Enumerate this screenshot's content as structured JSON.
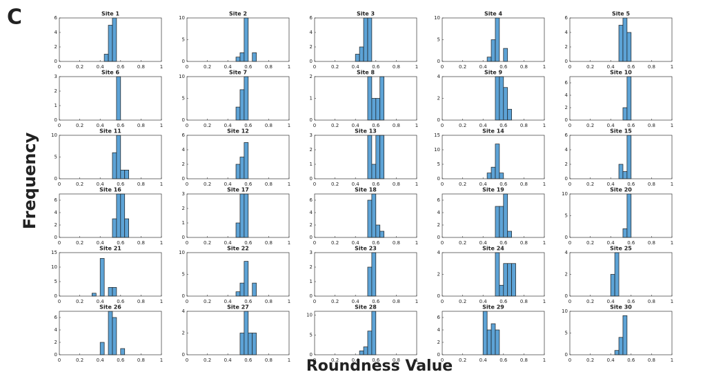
{
  "panel_label": "C",
  "ylabel": "Frequency",
  "xlabel": "Roundness Value",
  "chart_data": [
    {
      "type": "histogram",
      "title": "Site 1",
      "bins": [
        0.44,
        0.48,
        0.52,
        0.56
      ],
      "values": [
        1,
        5,
        6
      ],
      "color": "#5da3d6",
      "xlim": [
        0,
        1
      ],
      "xticks": [
        0,
        0.2,
        0.4,
        0.6,
        0.8,
        1
      ],
      "ylim": [
        0,
        6
      ],
      "yticks": [
        0,
        2,
        4,
        6
      ]
    },
    {
      "type": "histogram",
      "title": "Site 2",
      "bins": [
        0.48,
        0.52,
        0.56,
        0.6,
        0.64,
        0.68
      ],
      "values": [
        1,
        2,
        10,
        0,
        2
      ],
      "color": "#5da3d6",
      "xlim": [
        0,
        1
      ],
      "xticks": [
        0,
        0.2,
        0.4,
        0.6,
        0.8,
        1
      ],
      "ylim": [
        0,
        10
      ],
      "yticks": [
        0,
        5,
        10
      ]
    },
    {
      "type": "histogram",
      "title": "Site 3",
      "bins": [
        0.4,
        0.44,
        0.48,
        0.52,
        0.56
      ],
      "values": [
        1,
        2,
        6,
        6
      ],
      "color": "#5da3d6",
      "xlim": [
        0,
        1
      ],
      "xticks": [
        0,
        0.2,
        0.4,
        0.6,
        0.8,
        1
      ],
      "ylim": [
        0,
        6
      ],
      "yticks": [
        0,
        2,
        4,
        6
      ]
    },
    {
      "type": "histogram",
      "title": "Site 4",
      "bins": [
        0.44,
        0.48,
        0.52,
        0.56,
        0.6,
        0.64
      ],
      "values": [
        1,
        5,
        10,
        0,
        3
      ],
      "color": "#5da3d6",
      "xlim": [
        0,
        1
      ],
      "xticks": [
        0,
        0.2,
        0.4,
        0.6,
        0.8,
        1
      ],
      "ylim": [
        0,
        10
      ],
      "yticks": [
        0,
        5,
        10
      ]
    },
    {
      "type": "histogram",
      "title": "Site 5",
      "bins": [
        0.48,
        0.52,
        0.56,
        0.6
      ],
      "values": [
        5,
        6,
        4
      ],
      "color": "#5da3d6",
      "xlim": [
        0,
        1
      ],
      "xticks": [
        0,
        0.2,
        0.4,
        0.6,
        0.8,
        1
      ],
      "ylim": [
        0,
        6
      ],
      "yticks": [
        0,
        2,
        4,
        6
      ]
    },
    {
      "type": "histogram",
      "title": "Site 6",
      "bins": [
        0.56,
        0.6
      ],
      "values": [
        3
      ],
      "color": "#5da3d6",
      "xlim": [
        0,
        1
      ],
      "xticks": [
        0,
        0.2,
        0.4,
        0.6,
        0.8,
        1
      ],
      "ylim": [
        0,
        3
      ],
      "yticks": [
        0,
        1,
        2,
        3
      ]
    },
    {
      "type": "histogram",
      "title": "Site 7",
      "bins": [
        0.48,
        0.52,
        0.56,
        0.6
      ],
      "values": [
        3,
        7,
        10
      ],
      "color": "#5da3d6",
      "xlim": [
        0,
        1
      ],
      "xticks": [
        0,
        0.2,
        0.4,
        0.6,
        0.8,
        1
      ],
      "ylim": [
        0,
        10
      ],
      "yticks": [
        0,
        5,
        10
      ]
    },
    {
      "type": "histogram",
      "title": "Site 8",
      "bins": [
        0.52,
        0.56,
        0.6,
        0.64,
        0.68
      ],
      "values": [
        2,
        1,
        1,
        2
      ],
      "color": "#5da3d6",
      "xlim": [
        0,
        1
      ],
      "xticks": [
        0,
        0.2,
        0.4,
        0.6,
        0.8,
        1
      ],
      "ylim": [
        0,
        2
      ],
      "yticks": [
        0,
        1,
        2
      ]
    },
    {
      "type": "histogram",
      "title": "Site 9",
      "bins": [
        0.52,
        0.56,
        0.6,
        0.64,
        0.68
      ],
      "values": [
        4,
        4,
        3,
        1
      ],
      "color": "#5da3d6",
      "xlim": [
        0,
        1
      ],
      "xticks": [
        0,
        0.2,
        0.4,
        0.6,
        0.8,
        1
      ],
      "ylim": [
        0,
        4
      ],
      "yticks": [
        0,
        2,
        4
      ]
    },
    {
      "type": "histogram",
      "title": "Site 10",
      "bins": [
        0.52,
        0.56,
        0.6
      ],
      "values": [
        2,
        7
      ],
      "color": "#5da3d6",
      "xlim": [
        0,
        1
      ],
      "xticks": [
        0,
        0.2,
        0.4,
        0.6,
        0.8,
        1
      ],
      "ylim": [
        0,
        7
      ],
      "yticks": [
        0,
        2,
        4,
        6
      ]
    },
    {
      "type": "histogram",
      "title": "Site 11",
      "bins": [
        0.52,
        0.56,
        0.6,
        0.64,
        0.68
      ],
      "values": [
        6,
        10,
        2,
        2
      ],
      "color": "#5da3d6",
      "xlim": [
        0,
        1
      ],
      "xticks": [
        0,
        0.2,
        0.4,
        0.6,
        0.8,
        1
      ],
      "ylim": [
        0,
        10
      ],
      "yticks": [
        0,
        5,
        10
      ]
    },
    {
      "type": "histogram",
      "title": "Site 12",
      "bins": [
        0.48,
        0.52,
        0.56,
        0.6
      ],
      "values": [
        2,
        3,
        5
      ],
      "color": "#5da3d6",
      "xlim": [
        0,
        1
      ],
      "xticks": [
        0,
        0.2,
        0.4,
        0.6,
        0.8,
        1
      ],
      "ylim": [
        0,
        6
      ],
      "yticks": [
        0,
        2,
        4,
        6
      ]
    },
    {
      "type": "histogram",
      "title": "Site 13",
      "bins": [
        0.52,
        0.56,
        0.6,
        0.64,
        0.68
      ],
      "values": [
        3,
        1,
        3,
        3
      ],
      "color": "#5da3d6",
      "xlim": [
        0,
        1
      ],
      "xticks": [
        0,
        0.2,
        0.4,
        0.6,
        0.8,
        1
      ],
      "ylim": [
        0,
        3
      ],
      "yticks": [
        0,
        1,
        2,
        3
      ]
    },
    {
      "type": "histogram",
      "title": "Site 14",
      "bins": [
        0.44,
        0.48,
        0.52,
        0.56,
        0.6
      ],
      "values": [
        2,
        4,
        12,
        2
      ],
      "color": "#5da3d6",
      "xlim": [
        0,
        1
      ],
      "xticks": [
        0,
        0.2,
        0.4,
        0.6,
        0.8,
        1
      ],
      "ylim": [
        0,
        15
      ],
      "yticks": [
        0,
        5,
        10,
        15
      ]
    },
    {
      "type": "histogram",
      "title": "Site 15",
      "bins": [
        0.48,
        0.52,
        0.56,
        0.6
      ],
      "values": [
        2,
        1,
        6
      ],
      "color": "#5da3d6",
      "xlim": [
        0,
        1
      ],
      "xticks": [
        0,
        0.2,
        0.4,
        0.6,
        0.8,
        1
      ],
      "ylim": [
        0,
        6
      ],
      "yticks": [
        0,
        2,
        4,
        6
      ]
    },
    {
      "type": "histogram",
      "title": "Site 16",
      "bins": [
        0.52,
        0.56,
        0.6,
        0.64,
        0.68
      ],
      "values": [
        3,
        7,
        7,
        3
      ],
      "color": "#5da3d6",
      "xlim": [
        0,
        1
      ],
      "xticks": [
        0,
        0.2,
        0.4,
        0.6,
        0.8,
        1
      ],
      "ylim": [
        0,
        7
      ],
      "yticks": [
        0,
        2,
        4,
        6
      ]
    },
    {
      "type": "histogram",
      "title": "Site 17",
      "bins": [
        0.48,
        0.52,
        0.56,
        0.6
      ],
      "values": [
        1,
        3,
        3
      ],
      "color": "#5da3d6",
      "xlim": [
        0,
        1
      ],
      "xticks": [
        0,
        0.2,
        0.4,
        0.6,
        0.8,
        1
      ],
      "ylim": [
        0,
        3
      ],
      "yticks": [
        0,
        1,
        2,
        3
      ]
    },
    {
      "type": "histogram",
      "title": "Site 18",
      "bins": [
        0.52,
        0.56,
        0.6,
        0.64,
        0.68
      ],
      "values": [
        6,
        7,
        2,
        1
      ],
      "color": "#5da3d6",
      "xlim": [
        0,
        1
      ],
      "xticks": [
        0,
        0.2,
        0.4,
        0.6,
        0.8,
        1
      ],
      "ylim": [
        0,
        7
      ],
      "yticks": [
        0,
        2,
        4,
        6
      ]
    },
    {
      "type": "histogram",
      "title": "Site 19",
      "bins": [
        0.52,
        0.56,
        0.6,
        0.64,
        0.68
      ],
      "values": [
        5,
        5,
        7,
        1
      ],
      "color": "#5da3d6",
      "xlim": [
        0,
        1
      ],
      "xticks": [
        0,
        0.2,
        0.4,
        0.6,
        0.8,
        1
      ],
      "ylim": [
        0,
        7
      ],
      "yticks": [
        0,
        2,
        4,
        6
      ]
    },
    {
      "type": "histogram",
      "title": "Site 20",
      "bins": [
        0.52,
        0.56,
        0.6
      ],
      "values": [
        2,
        10
      ],
      "color": "#5da3d6",
      "xlim": [
        0,
        1
      ],
      "xticks": [
        0,
        0.2,
        0.4,
        0.6,
        0.8,
        1
      ],
      "ylim": [
        0,
        10
      ],
      "yticks": [
        0,
        5,
        10
      ]
    },
    {
      "type": "histogram",
      "title": "Site 21",
      "bins": [
        0.32,
        0.36,
        0.4,
        0.44,
        0.48,
        0.52,
        0.56
      ],
      "values": [
        1,
        0,
        13,
        0,
        3,
        3
      ],
      "color": "#5da3d6",
      "xlim": [
        0,
        1
      ],
      "xticks": [
        0,
        0.2,
        0.4,
        0.6,
        0.8,
        1
      ],
      "ylim": [
        0,
        15
      ],
      "yticks": [
        0,
        5,
        10,
        15
      ]
    },
    {
      "type": "histogram",
      "title": "Site 22",
      "bins": [
        0.48,
        0.52,
        0.56,
        0.6,
        0.64,
        0.68
      ],
      "values": [
        1,
        3,
        8,
        0,
        3
      ],
      "color": "#5da3d6",
      "xlim": [
        0,
        1
      ],
      "xticks": [
        0,
        0.2,
        0.4,
        0.6,
        0.8,
        1
      ],
      "ylim": [
        0,
        10
      ],
      "yticks": [
        0,
        5,
        10
      ]
    },
    {
      "type": "histogram",
      "title": "Site 23",
      "bins": [
        0.52,
        0.56,
        0.6
      ],
      "values": [
        2,
        3
      ],
      "color": "#5da3d6",
      "xlim": [
        0,
        1
      ],
      "xticks": [
        0,
        0.2,
        0.4,
        0.6,
        0.8,
        1
      ],
      "ylim": [
        0,
        3
      ],
      "yticks": [
        0,
        1,
        2,
        3
      ]
    },
    {
      "type": "histogram",
      "title": "Site 24",
      "bins": [
        0.52,
        0.56,
        0.6,
        0.64,
        0.68,
        0.72
      ],
      "values": [
        4,
        1,
        3,
        3,
        3
      ],
      "color": "#5da3d6",
      "xlim": [
        0,
        1
      ],
      "xticks": [
        0,
        0.2,
        0.4,
        0.6,
        0.8,
        1
      ],
      "ylim": [
        0,
        4
      ],
      "yticks": [
        0,
        2,
        4
      ]
    },
    {
      "type": "histogram",
      "title": "Site 25",
      "bins": [
        0.4,
        0.44,
        0.48
      ],
      "values": [
        2,
        4
      ],
      "color": "#5da3d6",
      "xlim": [
        0,
        1
      ],
      "xticks": [
        0,
        0.2,
        0.4,
        0.6,
        0.8,
        1
      ],
      "ylim": [
        0,
        4
      ],
      "yticks": [
        0,
        2,
        4
      ]
    },
    {
      "type": "histogram",
      "title": "Site 26",
      "bins": [
        0.4,
        0.44,
        0.48,
        0.52,
        0.56,
        0.6,
        0.64
      ],
      "values": [
        2,
        0,
        7,
        6,
        0,
        1
      ],
      "color": "#5da3d6",
      "xlim": [
        0,
        1
      ],
      "xticks": [
        0,
        0.2,
        0.4,
        0.6,
        0.8,
        1
      ],
      "ylim": [
        0,
        7
      ],
      "yticks": [
        0,
        2,
        4,
        6
      ]
    },
    {
      "type": "histogram",
      "title": "Site 27",
      "bins": [
        0.52,
        0.56,
        0.6,
        0.64,
        0.68
      ],
      "values": [
        2,
        4,
        2,
        2
      ],
      "color": "#5da3d6",
      "xlim": [
        0,
        1
      ],
      "xticks": [
        0,
        0.2,
        0.4,
        0.6,
        0.8,
        1
      ],
      "ylim": [
        0,
        4
      ],
      "yticks": [
        0,
        2,
        4
      ]
    },
    {
      "type": "histogram",
      "title": "Site 28",
      "bins": [
        0.44,
        0.48,
        0.52,
        0.56,
        0.6
      ],
      "values": [
        1,
        2,
        6,
        11
      ],
      "color": "#5da3d6",
      "xlim": [
        0,
        1
      ],
      "xticks": [
        0,
        0.2,
        0.4,
        0.6,
        0.8,
        1
      ],
      "ylim": [
        0,
        11
      ],
      "yticks": [
        0,
        5,
        10
      ]
    },
    {
      "type": "histogram",
      "title": "Site 29",
      "bins": [
        0.4,
        0.44,
        0.48,
        0.52,
        0.56
      ],
      "values": [
        7,
        4,
        5,
        4
      ],
      "color": "#5da3d6",
      "xlim": [
        0,
        1
      ],
      "xticks": [
        0,
        0.2,
        0.4,
        0.6,
        0.8,
        1
      ],
      "ylim": [
        0,
        7
      ],
      "yticks": [
        0,
        2,
        4,
        6
      ]
    },
    {
      "type": "histogram",
      "title": "Site 30",
      "bins": [
        0.44,
        0.48,
        0.52,
        0.56
      ],
      "values": [
        1,
        4,
        9
      ],
      "color": "#5da3d6",
      "xlim": [
        0,
        1
      ],
      "xticks": [
        0,
        0.2,
        0.4,
        0.6,
        0.8,
        1
      ],
      "ylim": [
        0,
        10
      ],
      "yticks": [
        0,
        5,
        10
      ]
    }
  ]
}
